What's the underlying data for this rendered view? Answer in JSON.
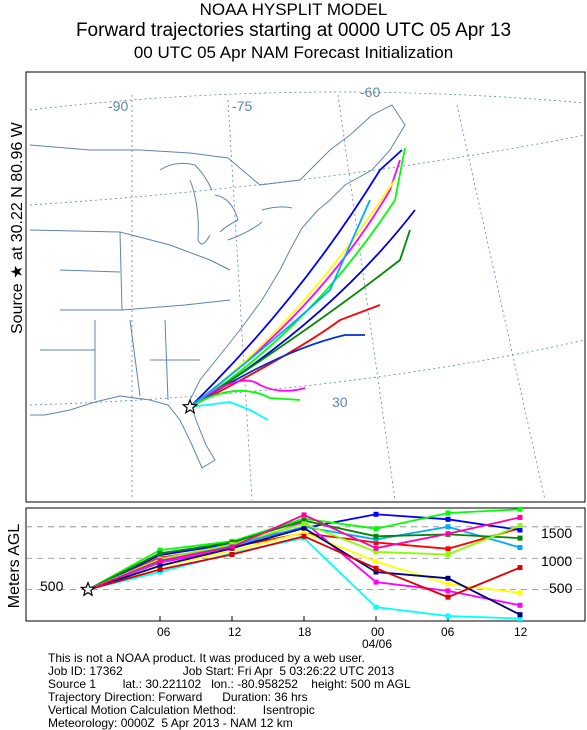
{
  "header": {
    "line1": "NOAA HYSPLIT MODEL",
    "line2": "Forward trajectories starting at 0000 UTC 05 Apr 13",
    "line3": "00 UTC 05 Apr     NAM  Forecast Initialization"
  },
  "side_labels": {
    "map": "Source ★ at    30.22 N    80.96 W",
    "profile": "Meters AGL"
  },
  "map": {
    "lon_labels": [
      "-90",
      "-75",
      "-60"
    ],
    "lat_labels": [
      "30"
    ],
    "source_symbol": "star"
  },
  "profile": {
    "y_tick_labels_right": [
      "1500",
      "1000",
      "500"
    ],
    "y_tick_label_left": "500",
    "x_tick_labels": [
      "06",
      "12",
      "18",
      "00",
      "06",
      "12"
    ],
    "date_label": "04/06"
  },
  "chart_data": {
    "type": "line",
    "title": "Forward trajectories starting at 0000 UTC 05 Apr 13",
    "xlabel": "",
    "ylabel": "Meters AGL",
    "x_unit": "hours after start",
    "x": [
      0,
      6,
      12,
      18,
      24,
      30,
      36
    ],
    "ylim": [
      0,
      1800
    ],
    "y_ticks": [
      500,
      1000,
      1500
    ],
    "start": {
      "lat": 30.221102,
      "lon": -80.958252,
      "height_m_agl": 500
    },
    "series": [
      {
        "color": "#ff0000",
        "values": [
          500,
          1010,
          1180,
          1400,
          1250,
          1150,
          1480
        ]
      },
      {
        "color": "#0000ff",
        "values": [
          500,
          1050,
          1230,
          1480,
          1700,
          1620,
          1450
        ]
      },
      {
        "color": "#00ff00",
        "values": [
          500,
          1130,
          1270,
          1630,
          1470,
          1720,
          1780
        ]
      },
      {
        "color": "#ff00ff",
        "values": [
          500,
          930,
          1150,
          1580,
          620,
          480,
          250
        ]
      },
      {
        "color": "#00ffff",
        "values": [
          500,
          780,
          1080,
          1320,
          220,
          80,
          40
        ]
      },
      {
        "color": "#ffff00",
        "values": [
          500,
          870,
          1120,
          1410,
          950,
          590,
          450
        ]
      },
      {
        "color": "#00aaff",
        "values": [
          500,
          950,
          1200,
          1500,
          1300,
          1500,
          1170
        ]
      },
      {
        "color": "#008800",
        "values": [
          500,
          1080,
          1250,
          1600,
          1350,
          1380,
          1320
        ]
      },
      {
        "color": "#000080",
        "values": [
          500,
          880,
          1160,
          1480,
          780,
          680,
          100
        ]
      },
      {
        "color": "#dd0000",
        "values": [
          500,
          820,
          1060,
          1350,
          840,
          380,
          850
        ]
      },
      {
        "color": "#88ff00",
        "values": [
          500,
          990,
          1220,
          1550,
          1100,
          1060,
          1520
        ]
      },
      {
        "color": "#ff00aa",
        "values": [
          500,
          960,
          1180,
          1690,
          1160,
          1390,
          1650
        ]
      }
    ]
  },
  "footer": {
    "lines": [
      "This is not a NOAA product. It was produced by a web user.",
      "Job ID: 17362                  Job Start: Fri Apr  5 03:26:22 UTC 2013",
      "Source 1        lat.: 30.221102   lon.: -80.958252    height: 500 m AGL",
      "Trajectory Direction: Forward      Duration: 36 hrs",
      "Vertical Motion Calculation Method:        Isentropic",
      "Meteorology: 0000Z  5 Apr 2013 - NAM 12 km"
    ]
  }
}
